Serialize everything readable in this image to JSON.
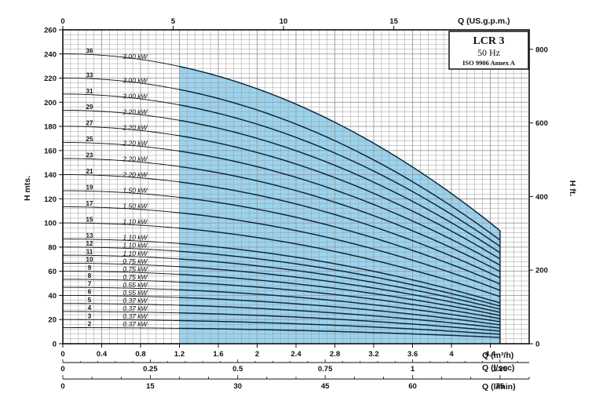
{
  "chart_data": {
    "type": "line",
    "title": "LCR 3",
    "subtitle": "50 Hz",
    "standard": "ISO 9906 Annex A",
    "ylabel_left": "H mts.",
    "ylabel_right": "H ft.",
    "axes": {
      "q_m3h": {
        "label": "Q (m³/h)",
        "min": 0,
        "max": 4.8,
        "ticks": [
          "0",
          "0.4",
          "0.8",
          "1.2",
          "1.6",
          "2",
          "2.4",
          "2.8",
          "3.2",
          "3.6",
          "4",
          "4.4"
        ],
        "tick_values": [
          0,
          0.4,
          0.8,
          1.2,
          1.6,
          2,
          2.4,
          2.8,
          3.2,
          3.6,
          4,
          4.4
        ]
      },
      "q_gpm": {
        "label": "Q (US.g.p.m.)",
        "ticks": [
          "0",
          "5",
          "10",
          "15"
        ],
        "tick_values": [
          0,
          5,
          10,
          15
        ]
      },
      "q_lsec": {
        "label": "Q (l/sec)",
        "ticks": [
          "0",
          "0.25",
          "0.5",
          "0.75",
          "1",
          "1.25"
        ],
        "tick_values": [
          0,
          0.25,
          0.5,
          0.75,
          1,
          1.25
        ]
      },
      "q_lmin": {
        "label": "Q (l/min)",
        "ticks": [
          "0",
          "15",
          "30",
          "45",
          "60",
          "75"
        ],
        "tick_values": [
          0,
          15,
          30,
          45,
          60,
          75
        ]
      },
      "h_m": {
        "min": 0,
        "max": 260,
        "ticks": [
          "0",
          "20",
          "40",
          "60",
          "80",
          "100",
          "120",
          "140",
          "160",
          "180",
          "200",
          "220",
          "240",
          "260"
        ],
        "tick_values": [
          0,
          20,
          40,
          60,
          80,
          100,
          120,
          140,
          160,
          180,
          200,
          220,
          240,
          260
        ]
      },
      "h_ft": {
        "ticks": [
          "0",
          "200",
          "400",
          "600",
          "800"
        ],
        "tick_values": [
          0,
          200,
          400,
          600,
          800
        ]
      }
    },
    "operating_range_m3h": [
      1.2,
      4.5
    ],
    "curve_model": {
      "shutoff_head_per_stage_m": 6.67,
      "head_at_max_flow_per_stage_m": 2.6,
      "q_max_m3h": 4.5
    },
    "series": [
      {
        "name": "36",
        "stages": 36,
        "power": "3.00 kW"
      },
      {
        "name": "33",
        "stages": 33,
        "power": "3.00 kW"
      },
      {
        "name": "31",
        "stages": 31,
        "power": "3.00 kW"
      },
      {
        "name": "29",
        "stages": 29,
        "power": "2.20 kW"
      },
      {
        "name": "27",
        "stages": 27,
        "power": "2.20 kW"
      },
      {
        "name": "25",
        "stages": 25,
        "power": "2.20 kW"
      },
      {
        "name": "23",
        "stages": 23,
        "power": "2.20 kW"
      },
      {
        "name": "21",
        "stages": 21,
        "power": "2.20 kW"
      },
      {
        "name": "19",
        "stages": 19,
        "power": "1.50 kW"
      },
      {
        "name": "17",
        "stages": 17,
        "power": "1.50 kW"
      },
      {
        "name": "15",
        "stages": 15,
        "power": "1.10 kW"
      },
      {
        "name": "13",
        "stages": 13,
        "power": "1.10 kW"
      },
      {
        "name": "12",
        "stages": 12,
        "power": "1.10 kW"
      },
      {
        "name": "11",
        "stages": 11,
        "power": "1.10 kW"
      },
      {
        "name": "10",
        "stages": 10,
        "power": "0.75 kW"
      },
      {
        "name": "9",
        "stages": 9,
        "power": "0.75 kW"
      },
      {
        "name": "8",
        "stages": 8,
        "power": "0.75 kW"
      },
      {
        "name": "7",
        "stages": 7,
        "power": "0.55 kW"
      },
      {
        "name": "6",
        "stages": 6,
        "power": "0.55 kW"
      },
      {
        "name": "5",
        "stages": 5,
        "power": "0.37 kW"
      },
      {
        "name": "4",
        "stages": 4,
        "power": "0.37 kW"
      },
      {
        "name": "3",
        "stages": 3,
        "power": "0.37 kW"
      },
      {
        "name": "2",
        "stages": 2,
        "power": "0.37 kW"
      }
    ],
    "colors": {
      "fill": "#9bd3ee",
      "curve": "#0d2a40",
      "grid": "#9a9a9a",
      "ink": "#111111"
    }
  }
}
